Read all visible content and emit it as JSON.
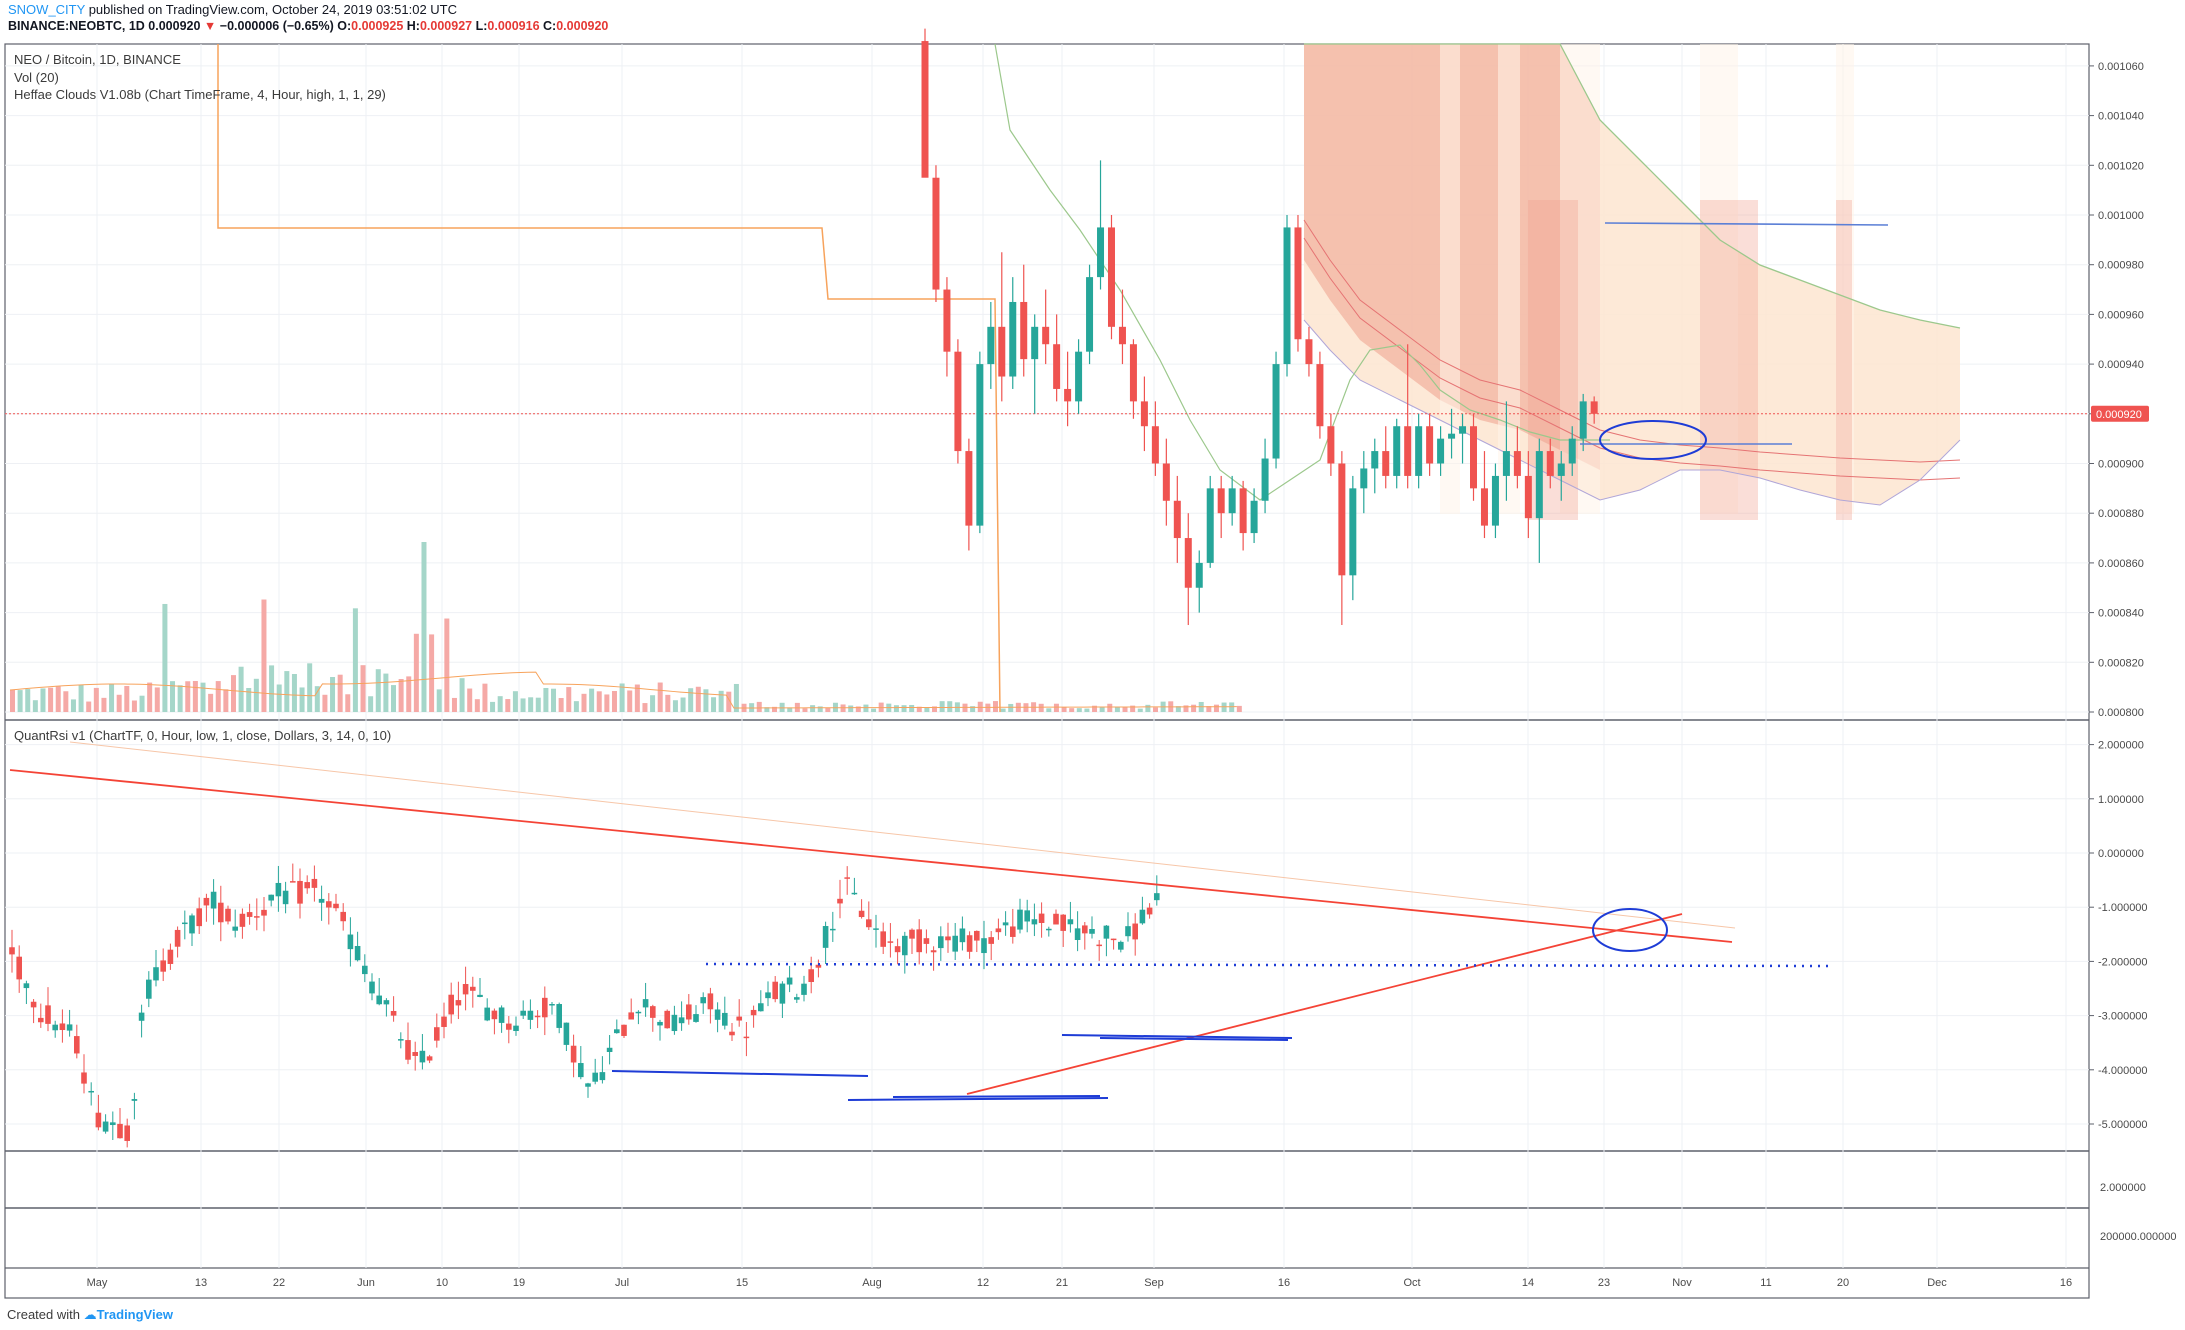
{
  "header": {
    "author": "SNOW_CITY",
    "published": "published on TradingView.com, October 24, 2019 03:51:02 UTC",
    "symbol": "BINANCE:NEOBTC, 1D",
    "price": "0.000920",
    "change_arrow": "▼",
    "change": "−0.000006 (−0.65%)",
    "open_label": "O:",
    "open": "0.000925",
    "high_label": "H:",
    "high": "0.000927",
    "low_label": "L:",
    "low": "0.000916",
    "close_label": "C:",
    "close": "0.000920"
  },
  "legend": {
    "main_title": "NEO / Bitcoin, 1D, BINANCE",
    "volume": "Vol (20)",
    "cloud_indicator": "Heffae Clouds V1.08b (Chart TimeFrame, 4, Hour, high, 1, 1, 29)",
    "rsi_indicator": "QuantRsi v1 (ChartTF, 0, Hour, low, 1, close, Dollars, 3, 14, 0, 10)"
  },
  "footer": {
    "created_with": "Created with",
    "brand": "TradingView"
  },
  "colors": {
    "up": "#26a69a",
    "down": "#ef5350",
    "vol_up": "#a5d6c9",
    "vol_down": "#f5a9a6",
    "cloud_dark": "#f3b6a4",
    "cloud_light": "#fde5d0",
    "trend_red": "#f44336",
    "support_blue": "#1e3cd6",
    "level_line": "#5b7fd6",
    "orange": "#f7a35c",
    "price_label_bg": "#ef5350"
  },
  "chart_data": [
    {
      "type": "candlestick",
      "title": "NEO / Bitcoin, 1D, BINANCE",
      "y_axis_ticks": [
        "0.001060",
        "0.001040",
        "0.001020",
        "0.001000",
        "0.000980",
        "0.000960",
        "0.000940",
        "0.000920",
        "0.000900",
        "0.000880",
        "0.000860",
        "0.000840",
        "0.000820",
        "0.000800"
      ],
      "ylim": [
        0.000796,
        0.001075
      ],
      "last_price": "0.000920",
      "price_line_label": "0.000920",
      "x_ticks": [
        "May",
        "13",
        "22",
        "Jun",
        "10",
        "19",
        "Jul",
        "15",
        "Aug",
        "12",
        "21",
        "Sep",
        "16",
        "Oct",
        "14",
        "23",
        "Nov",
        "11",
        "20",
        "Dec",
        "16"
      ],
      "candles_aug_to_oct": [
        [
          0.00107,
          0.001075,
          0.00102,
          0.001015
        ],
        [
          0.001015,
          0.00102,
          0.000965,
          0.00097
        ],
        [
          0.00097,
          0.000975,
          0.000935,
          0.000945
        ],
        [
          0.000945,
          0.00095,
          0.0009,
          0.000905
        ],
        [
          0.000905,
          0.00091,
          0.000865,
          0.000875
        ],
        [
          0.000875,
          0.000945,
          0.000872,
          0.00094
        ],
        [
          0.00094,
          0.000965,
          0.00093,
          0.000955
        ],
        [
          0.000955,
          0.000985,
          0.000925,
          0.000935
        ],
        [
          0.000935,
          0.000975,
          0.00093,
          0.000965
        ],
        [
          0.000965,
          0.00098,
          0.000935,
          0.000942
        ],
        [
          0.000942,
          0.00096,
          0.00092,
          0.000955
        ],
        [
          0.000955,
          0.00097,
          0.00094,
          0.000948
        ],
        [
          0.000948,
          0.00096,
          0.000925,
          0.00093
        ],
        [
          0.00093,
          0.000945,
          0.000915,
          0.000925
        ],
        [
          0.000925,
          0.00095,
          0.00092,
          0.000945
        ],
        [
          0.000945,
          0.00098,
          0.00094,
          0.000975
        ],
        [
          0.000975,
          0.001022,
          0.00097,
          0.000995
        ],
        [
          0.000995,
          0.001,
          0.00095,
          0.000955
        ],
        [
          0.000955,
          0.00097,
          0.00094,
          0.000948
        ],
        [
          0.000948,
          0.00095,
          0.000918,
          0.000925
        ],
        [
          0.000925,
          0.000935,
          0.000905,
          0.000915
        ],
        [
          0.000915,
          0.000925,
          0.000895,
          0.0009
        ],
        [
          0.0009,
          0.00091,
          0.000875,
          0.000885
        ],
        [
          0.000885,
          0.000895,
          0.00086,
          0.00087
        ],
        [
          0.00087,
          0.00088,
          0.000835,
          0.00085
        ],
        [
          0.00085,
          0.000865,
          0.00084,
          0.00086
        ],
        [
          0.00086,
          0.000895,
          0.000858,
          0.00089
        ],
        [
          0.00089,
          0.000895,
          0.00087,
          0.00088
        ],
        [
          0.00088,
          0.000895,
          0.000875,
          0.00089
        ],
        [
          0.00089,
          0.000893,
          0.000865,
          0.000872
        ],
        [
          0.000872,
          0.00089,
          0.000868,
          0.000885
        ],
        [
          0.000885,
          0.00091,
          0.00088,
          0.000902
        ],
        [
          0.000902,
          0.000945,
          0.000898,
          0.00094
        ],
        [
          0.00094,
          0.001,
          0.000935,
          0.000995
        ],
        [
          0.000995,
          0.001,
          0.000945,
          0.00095
        ],
        [
          0.00095,
          0.000955,
          0.000935,
          0.00094
        ],
        [
          0.00094,
          0.000945,
          0.00091,
          0.000915
        ],
        [
          0.000915,
          0.00092,
          0.000895,
          0.0009
        ],
        [
          0.0009,
          0.000905,
          0.000835,
          0.000855
        ],
        [
          0.000855,
          0.000895,
          0.000845,
          0.00089
        ],
        [
          0.00089,
          0.000905,
          0.00088,
          0.000898
        ],
        [
          0.000898,
          0.00091,
          0.000888,
          0.000905
        ],
        [
          0.000905,
          0.000915,
          0.00089,
          0.000895
        ],
        [
          0.000895,
          0.000918,
          0.00089,
          0.000915
        ],
        [
          0.000915,
          0.000948,
          0.00089,
          0.000895
        ],
        [
          0.000895,
          0.00092,
          0.00089,
          0.000915
        ],
        [
          0.000915,
          0.00092,
          0.000895,
          0.0009
        ],
        [
          0.0009,
          0.000915,
          0.000895,
          0.00091
        ],
        [
          0.00091,
          0.000922,
          0.000902,
          0.000912
        ],
        [
          0.000912,
          0.00092,
          0.0009,
          0.000915
        ],
        [
          0.000915,
          0.00092,
          0.000885,
          0.00089
        ],
        [
          0.00089,
          0.000905,
          0.00087,
          0.000875
        ],
        [
          0.000875,
          0.0009,
          0.00087,
          0.000895
        ],
        [
          0.000895,
          0.000925,
          0.000885,
          0.000905
        ],
        [
          0.000905,
          0.000915,
          0.00089,
          0.000895
        ],
        [
          0.000895,
          0.000905,
          0.00087,
          0.000878
        ],
        [
          0.000878,
          0.00091,
          0.00086,
          0.000905
        ],
        [
          0.000905,
          0.00091,
          0.00089,
          0.000895
        ],
        [
          0.000895,
          0.000905,
          0.000885,
          0.0009
        ],
        [
          0.0009,
          0.000915,
          0.000895,
          0.00091
        ],
        [
          0.00091,
          0.000928,
          0.000905,
          0.000925
        ],
        [
          0.000925,
          0.000927,
          0.000916,
          0.00092
        ]
      ],
      "volume_label": "Vol (20)"
    },
    {
      "type": "candlestick",
      "title": "QuantRsi v1 (ChartTF, 0, Hour, low, 1, close, Dollars, 3, 14, 0, 10)",
      "y_axis_ticks": [
        "2.000000",
        "1.000000",
        "0.000000",
        "-1.000000",
        "-2.000000",
        "-3.000000",
        "-4.000000",
        "-5.000000"
      ],
      "ylim": [
        -5.6,
        2.25
      ],
      "dotted_support_level": -2.05
    },
    {
      "type": "line",
      "y_axis_ticks": [
        "2.000000",
        "200000.000000"
      ]
    }
  ]
}
